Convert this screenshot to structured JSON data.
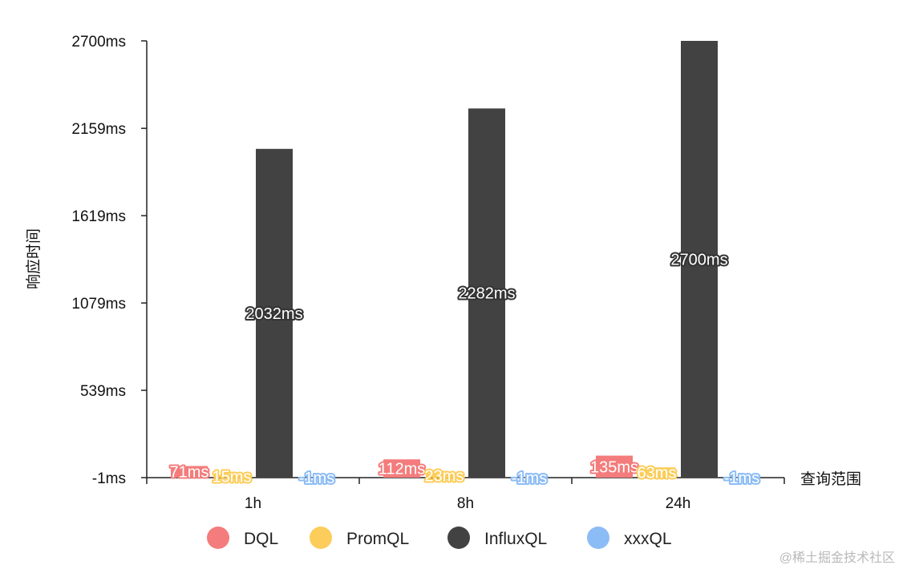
{
  "chart_data": {
    "type": "bar",
    "categories": [
      "1h",
      "8h",
      "24h"
    ],
    "series": [
      {
        "name": "DQL",
        "values": [
          71,
          112,
          135
        ],
        "labels": [
          "71ms",
          "112ms",
          "135ms"
        ]
      },
      {
        "name": "PromQL",
        "values": [
          15,
          23,
          63
        ],
        "labels": [
          "15ms",
          "23ms",
          "63ms"
        ]
      },
      {
        "name": "InfluxQL",
        "values": [
          2032,
          2282,
          2700
        ],
        "labels": [
          "2032ms",
          "2282ms",
          "2700ms"
        ]
      },
      {
        "name": "xxxQL",
        "values": [
          -1,
          -1,
          -1
        ],
        "labels": [
          "-1ms",
          "-1ms",
          "-1ms"
        ]
      }
    ],
    "colors": [
      "#f47c7c",
      "#fccd5a",
      "#424242",
      "#8cbcf5"
    ],
    "ylabel": "响应时间",
    "xlabel": "查询范围",
    "ylim": [
      -1,
      2700
    ],
    "yticks": [
      -1,
      539,
      1079,
      1619,
      2159,
      2700
    ],
    "ytick_labels": [
      "-1ms",
      "539ms",
      "1079ms",
      "1619ms",
      "2159ms",
      "2700ms"
    ],
    "legend_position": "bottom",
    "grid": false
  },
  "watermark": "@稀土掘金技术社区"
}
